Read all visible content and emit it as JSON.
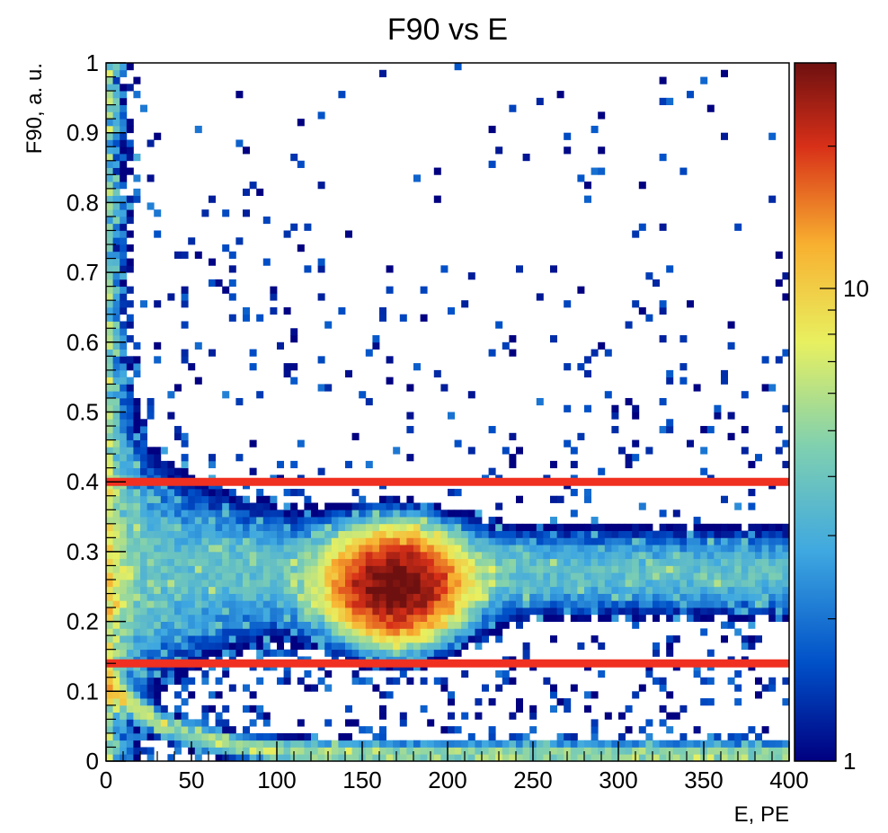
{
  "chart_data": {
    "type": "heatmap",
    "title": "F90 vs E",
    "xlabel": "E, PE",
    "ylabel": "F90, a. u.",
    "xlim": [
      0,
      400
    ],
    "ylim": [
      0,
      1
    ],
    "x_ticks": [
      "0",
      "50",
      "100",
      "150",
      "200",
      "250",
      "300",
      "350",
      "400"
    ],
    "y_ticks": [
      "0",
      "0.1",
      "0.2",
      "0.3",
      "0.4",
      "0.5",
      "0.6",
      "0.7",
      "0.8",
      "0.9",
      "1"
    ],
    "x_bins": 100,
    "y_bins": 100,
    "z_scale": "log",
    "zlim": [
      1,
      30
    ],
    "z_tick_labels": [
      "1",
      "10"
    ],
    "colormap": [
      "#000080",
      "#0050c8",
      "#3fa8e0",
      "#7fd0b0",
      "#e8f060",
      "#f8b030",
      "#d83018",
      "#6e1010"
    ],
    "cut_lines": [
      {
        "y": 0.4,
        "color": "#f03020"
      },
      {
        "y": 0.14,
        "color": "#f03020"
      }
    ],
    "regions": [
      {
        "component": "electron recoil band",
        "E_range": [
          0,
          400
        ],
        "F90_center": 0.27,
        "F90_width": 0.04,
        "peak_counts": 5
      },
      {
        "component": "source peak",
        "E_center": 170,
        "F90_center": 0.25,
        "E_sigma": 22,
        "F90_sigma": 0.045,
        "peak_counts": 30
      },
      {
        "component": "low-energy region",
        "E_range": [
          0,
          15
        ],
        "F90_range": [
          0,
          1
        ],
        "peak_counts": 8
      },
      {
        "component": "low F90 band",
        "E_range": [
          0,
          400
        ],
        "F90_center": 0.01,
        "peak_counts": 6
      },
      {
        "component": "scattered background",
        "E_range": [
          0,
          400
        ],
        "F90_range": [
          0.3,
          1.0
        ],
        "peak_counts": 1
      }
    ]
  }
}
